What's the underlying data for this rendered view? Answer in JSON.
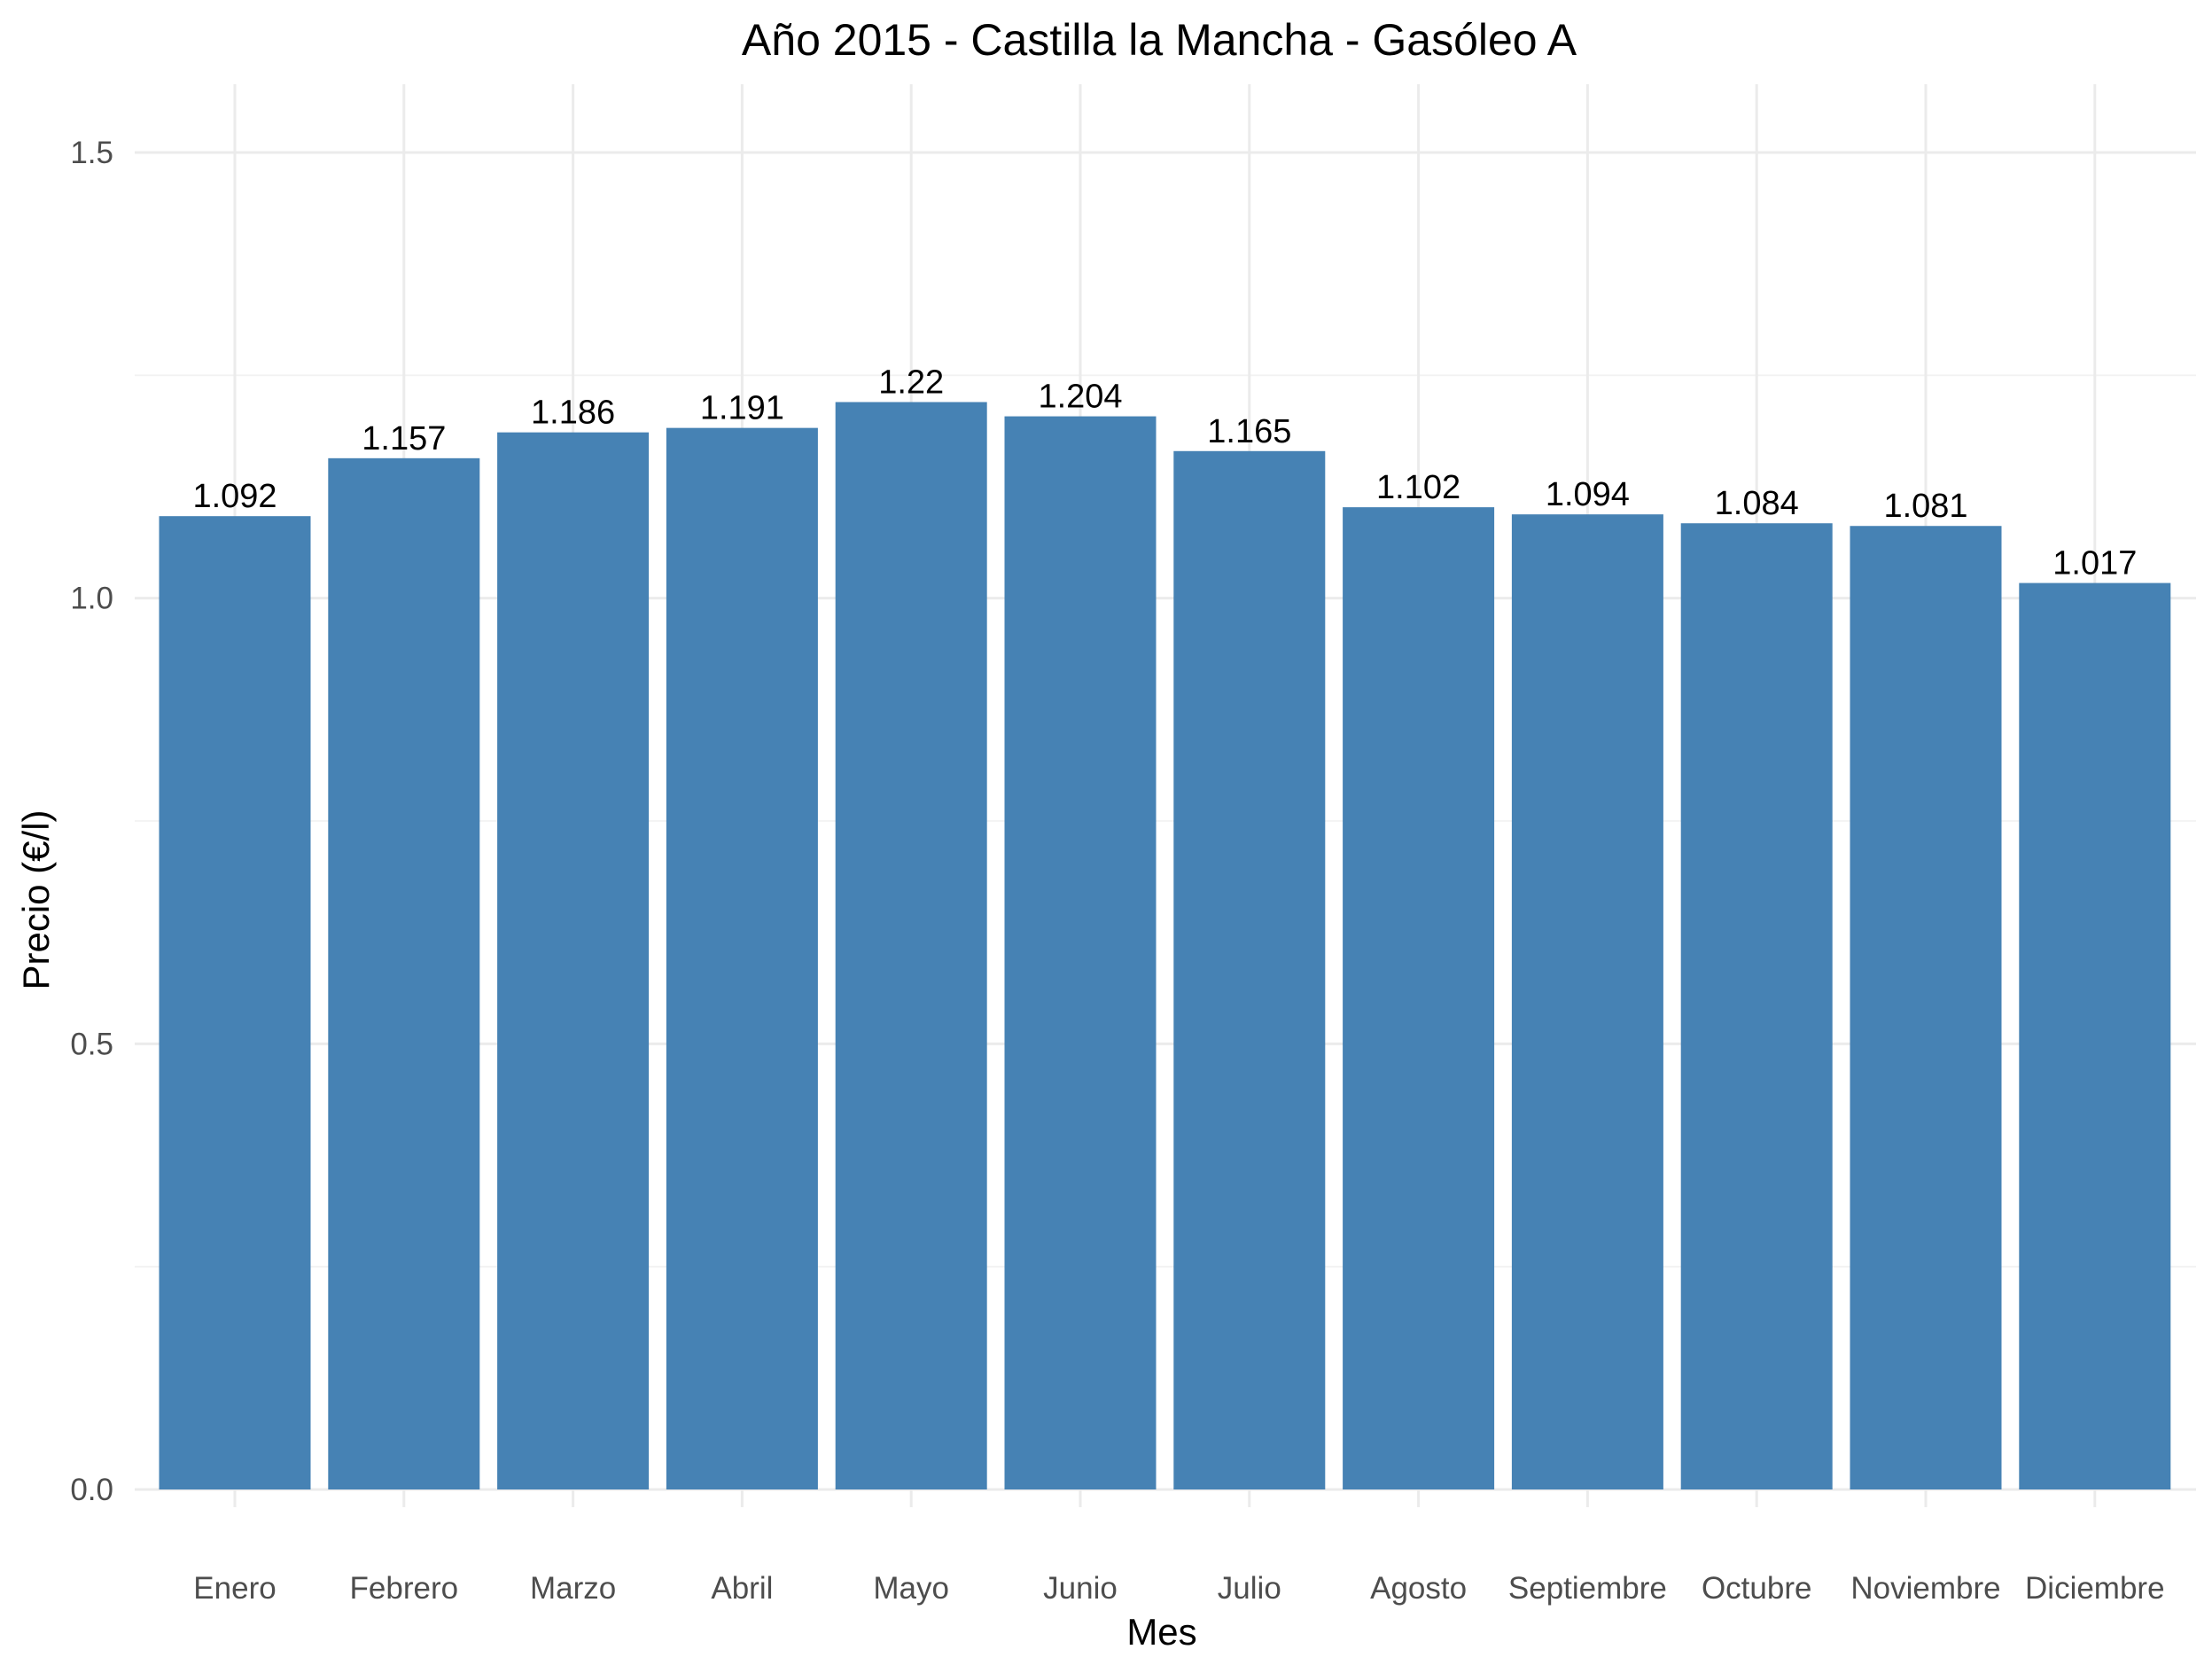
{
  "chart_data": {
    "type": "bar",
    "title": "Año 2015 - Castilla la Mancha - Gasóleo A",
    "xlabel": "Mes",
    "ylabel": "Precio (€/l)",
    "categories": [
      "Enero",
      "Febrero",
      "Marzo",
      "Abril",
      "Mayo",
      "Junio",
      "Julio",
      "Agosto",
      "Septiembre",
      "Octubre",
      "Noviembre",
      "Diciembre"
    ],
    "values": [
      1.092,
      1.157,
      1.186,
      1.191,
      1.22,
      1.204,
      1.165,
      1.102,
      1.094,
      1.084,
      1.081,
      1.017
    ],
    "value_labels": [
      "1.092",
      "1.157",
      "1.186",
      "1.191",
      "1.22",
      "1.204",
      "1.165",
      "1.102",
      "1.094",
      "1.084",
      "1.081",
      "1.017"
    ],
    "ylim": [
      0,
      1.5
    ],
    "yticks": [
      0,
      0.5,
      1.0,
      1.5
    ],
    "ytick_labels": [
      "0.0",
      "0.5",
      "1.0",
      "1.5"
    ],
    "grid": true,
    "legend": "none",
    "bar_color": "#4682b4"
  }
}
